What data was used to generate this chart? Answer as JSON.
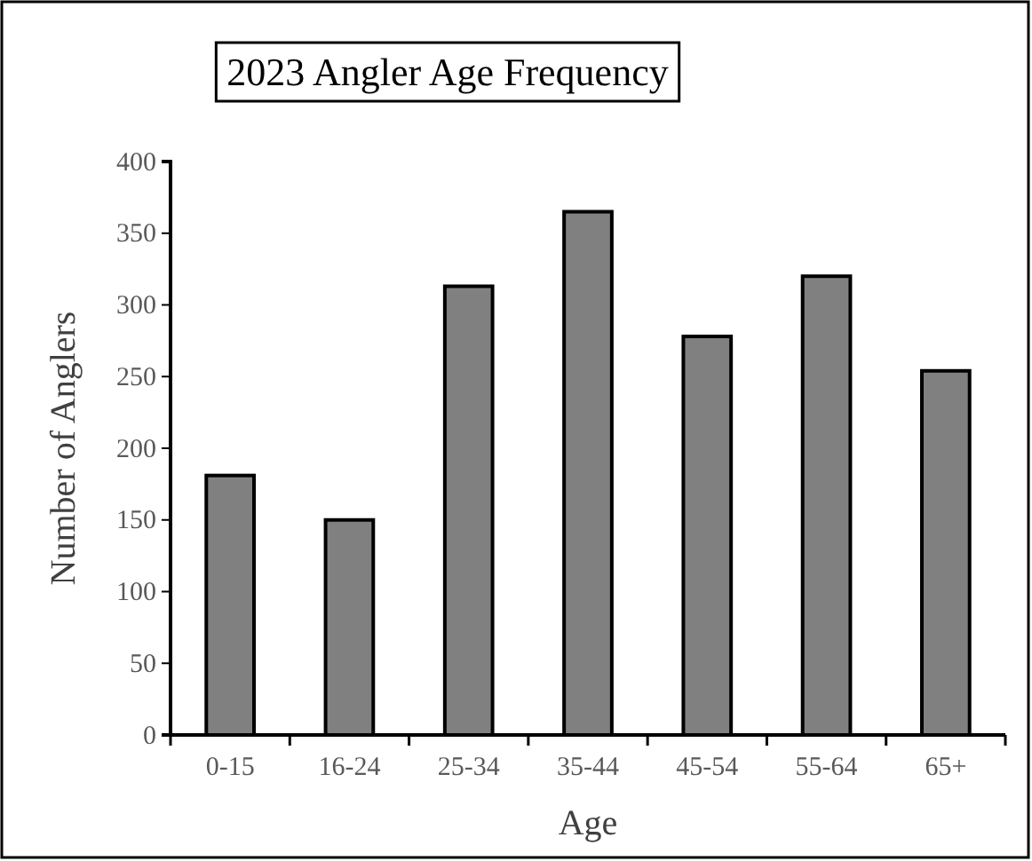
{
  "chart_data": {
    "type": "bar",
    "title": "2023 Angler Age Frequency",
    "xlabel": "Age",
    "ylabel": "Number of Anglers",
    "categories": [
      "0-15",
      "16-24",
      "25-34",
      "35-44",
      "45-54",
      "55-64",
      "65+"
    ],
    "values": [
      181,
      150,
      313,
      365,
      278,
      320,
      254
    ],
    "color": "#808080",
    "ylim": [
      0,
      400
    ],
    "yticks": [
      0,
      50,
      100,
      150,
      200,
      250,
      300,
      350,
      400
    ],
    "grid": false
  }
}
